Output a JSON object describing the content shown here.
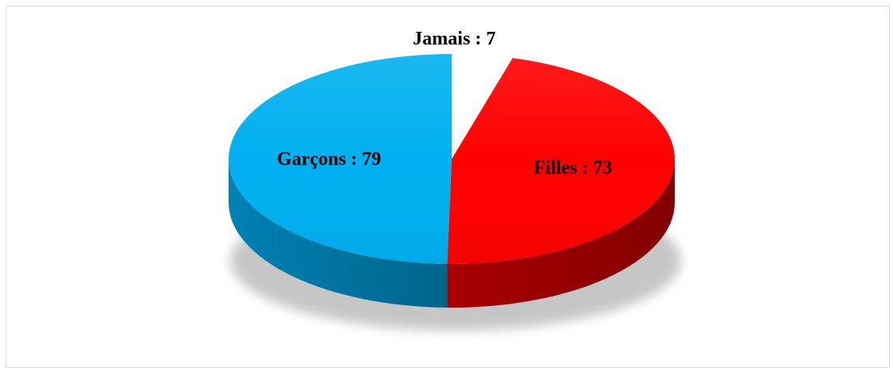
{
  "chart_data": {
    "type": "pie",
    "title": "",
    "categories": [
      "Jamais",
      "Filles",
      "Garçons"
    ],
    "values": [
      7,
      73,
      79
    ],
    "labels": [
      "Jamais : 7",
      "Filles : 73",
      "Garçons : 79"
    ],
    "colors": [
      "#ffffff",
      "#ff0000",
      "#00b0f0"
    ],
    "side_colors": [
      "#e6e6e6",
      "#a80000",
      "#0081b4"
    ],
    "start": "12 o'clock",
    "direction": "clockwise",
    "legend": "none",
    "style": "3D"
  }
}
